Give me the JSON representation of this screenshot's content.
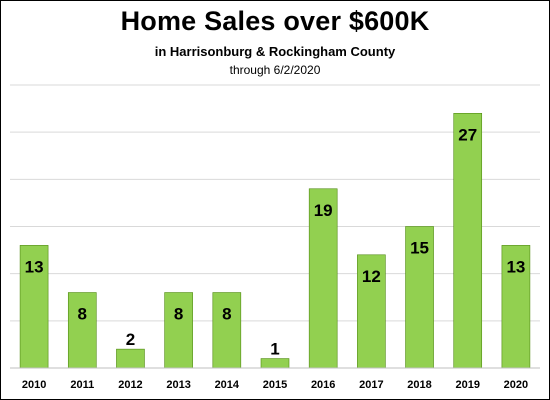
{
  "chart_data": {
    "type": "bar",
    "title": "Home Sales over $600K",
    "subtitle": "in Harrisonburg & Rockingham County",
    "note": "through 6/2/2020",
    "categories": [
      "2010",
      "2011",
      "2012",
      "2013",
      "2014",
      "2015",
      "2016",
      "2017",
      "2018",
      "2019",
      "2020"
    ],
    "values": [
      13,
      8,
      2,
      8,
      8,
      1,
      19,
      12,
      15,
      27,
      13
    ],
    "ylim": [
      0,
      30
    ],
    "grid": true,
    "legend": "none",
    "bar_color": "#92D050",
    "bar_stroke": "#4F8A10",
    "gridline_color": "#D9D9D9",
    "data_labels": true
  }
}
